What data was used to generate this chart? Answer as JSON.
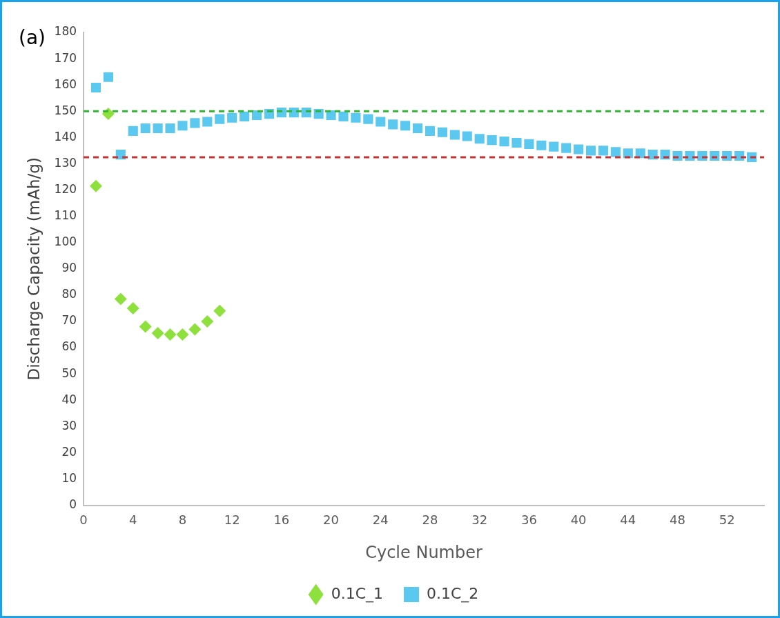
{
  "chart_data": {
    "type": "scatter",
    "xlabel": "Cycle Number",
    "ylabel": "Discharge Capacity (mAh/g)",
    "annotations": [
      "(a)"
    ],
    "xlim": [
      0,
      55
    ],
    "xticks": [
      0,
      4,
      8,
      12,
      16,
      20,
      24,
      28,
      32,
      36,
      40,
      44,
      48,
      52
    ],
    "ylim": [
      0,
      180
    ],
    "yticks": [
      0,
      10,
      20,
      30,
      40,
      50,
      60,
      70,
      80,
      90,
      100,
      110,
      120,
      130,
      140,
      150,
      160,
      170,
      180
    ],
    "grid": false,
    "legend": "bottom",
    "ref_lines": [
      {
        "axis": "y",
        "value": 150,
        "color": "#2fb52f",
        "line_style": "dashed"
      },
      {
        "axis": "y",
        "value": 132.5,
        "color": "#c83232",
        "line_style": "dashed"
      }
    ],
    "series": [
      {
        "name": "0.1C_1",
        "color": "#8ee03c",
        "marker": "diamond",
        "x": [
          1,
          2,
          3,
          4,
          5,
          6,
          7,
          8,
          9,
          10,
          11
        ],
        "values": [
          121.5,
          149,
          78.5,
          75,
          68,
          65.5,
          65,
          65,
          67,
          70,
          74
        ]
      },
      {
        "name": "0.1C_2",
        "color": "#5bc8f0",
        "marker": "square",
        "x": [
          1,
          2,
          3,
          4,
          5,
          6,
          7,
          8,
          9,
          10,
          11,
          12,
          13,
          14,
          15,
          16,
          17,
          18,
          19,
          20,
          21,
          22,
          23,
          24,
          25,
          26,
          27,
          28,
          29,
          30,
          31,
          32,
          33,
          34,
          35,
          36,
          37,
          38,
          39,
          40,
          41,
          42,
          43,
          44,
          45,
          46,
          47,
          48,
          49,
          50,
          51,
          52,
          53,
          54
        ],
        "values": [
          159,
          163,
          133.5,
          142.5,
          143.5,
          143.5,
          143.5,
          144.5,
          145.5,
          146,
          147,
          147.5,
          148,
          148.5,
          149,
          149.5,
          149.5,
          149.5,
          149,
          148.5,
          148,
          147.5,
          147,
          146,
          145,
          144.5,
          143.5,
          142.5,
          142,
          141,
          140.5,
          139.5,
          139,
          138.5,
          138,
          137.5,
          137,
          136.5,
          136,
          135.5,
          135,
          135,
          134.5,
          134,
          134,
          133.5,
          133.5,
          133,
          133,
          133,
          133,
          133,
          133,
          132.5
        ]
      }
    ]
  }
}
